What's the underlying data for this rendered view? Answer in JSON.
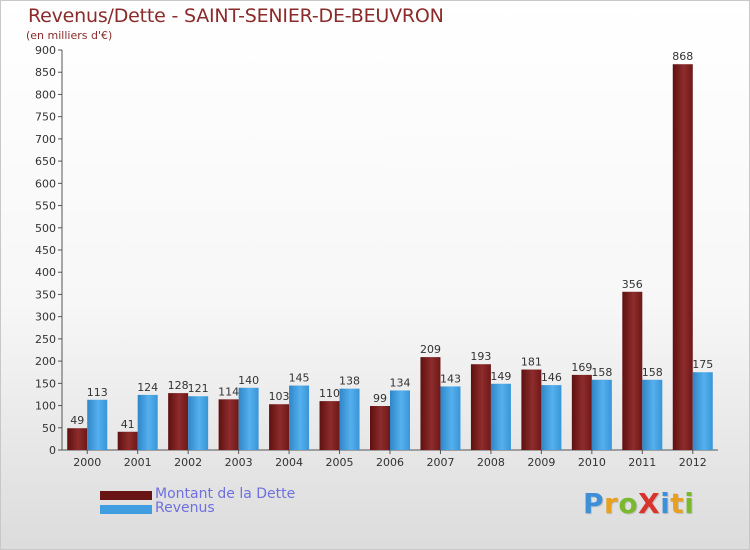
{
  "title": "Revenus/Dette - SAINT-SENIER-DE-BEUVRON",
  "subtitle": "(en milliers d'€)",
  "colors": {
    "title": "#8a2a2a",
    "dette": "#7a1e1e",
    "revenus": "#3f9de0",
    "legend_text": "#6f6fe0"
  },
  "legend": {
    "dette": "Montant de la Dette",
    "revenus": "Revenus"
  },
  "logo_text": "ProXiti",
  "chart_data": {
    "type": "bar",
    "title": "Revenus/Dette - SAINT-SENIER-DE-BEUVRON",
    "subtitle": "(en milliers d'€)",
    "categories": [
      "2000",
      "2001",
      "2002",
      "2003",
      "2004",
      "2005",
      "2006",
      "2007",
      "2008",
      "2009",
      "2010",
      "2011",
      "2012"
    ],
    "series": [
      {
        "name": "Montant de la Dette",
        "values": [
          49,
          41,
          128,
          114,
          103,
          110,
          99,
          209,
          193,
          181,
          169,
          356,
          868
        ]
      },
      {
        "name": "Revenus",
        "values": [
          113,
          124,
          121,
          140,
          145,
          138,
          134,
          143,
          149,
          146,
          158,
          158,
          175
        ]
      }
    ],
    "ylim": [
      0,
      900
    ],
    "yticks": [
      0,
      50,
      100,
      150,
      200,
      250,
      300,
      350,
      400,
      450,
      500,
      550,
      600,
      650,
      700,
      750,
      800,
      850,
      900
    ],
    "grid": false,
    "legend_position": "bottom-left"
  }
}
